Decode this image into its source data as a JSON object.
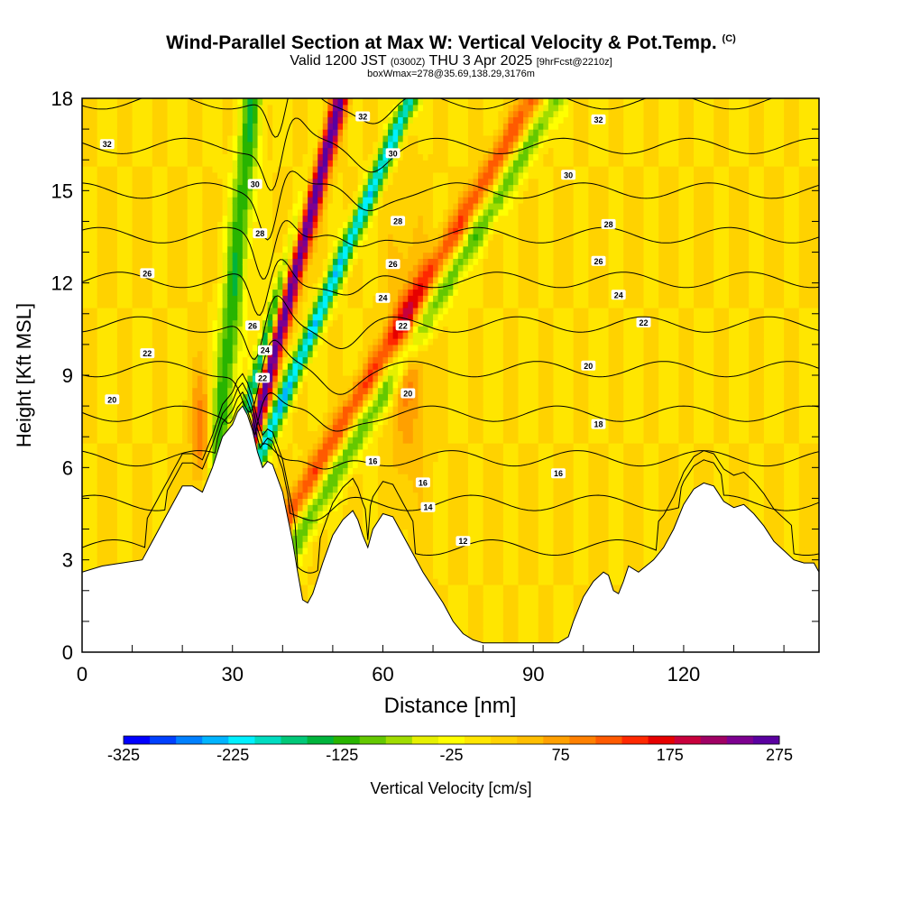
{
  "header": {
    "title": "Wind-Parallel Section at Max W: Vertical Velocity & Pot.Temp.",
    "copyright": "(C)",
    "valid_prefix": "Valid 1200 JST",
    "utc_time": "(0300Z)",
    "valid_date": "THU 3 Apr 2025",
    "forecast_tag": "[9hrFcst@2210z]",
    "box_info": "boxWmax=278@35.69,138.29,3176m"
  },
  "chart_data": {
    "type": "heatmap",
    "xlabel": "Distance [nm]",
    "ylabel": "Height [Kft MSL]",
    "xlim": [
      0,
      147
    ],
    "ylim": [
      0,
      18
    ],
    "x_ticks": [
      0,
      30,
      60,
      90,
      120
    ],
    "y_ticks": [
      0,
      3,
      6,
      9,
      12,
      15,
      18
    ],
    "grid": false,
    "background_w": 25,
    "terrain": [
      [
        0,
        2.6
      ],
      [
        4,
        2.8
      ],
      [
        8,
        2.9
      ],
      [
        12,
        3.0
      ],
      [
        14,
        3.6
      ],
      [
        16,
        4.2
      ],
      [
        18,
        4.8
      ],
      [
        20,
        5.4
      ],
      [
        22,
        5.4
      ],
      [
        24,
        5.2
      ],
      [
        26,
        6.0
      ],
      [
        28,
        7.0
      ],
      [
        30,
        7.4
      ],
      [
        31,
        7.8
      ],
      [
        32,
        8.0
      ],
      [
        33,
        7.7
      ],
      [
        34,
        7.2
      ],
      [
        35,
        6.5
      ],
      [
        36,
        6.0
      ],
      [
        37,
        6.2
      ],
      [
        38,
        6.1
      ],
      [
        40,
        5.2
      ],
      [
        42,
        3.6
      ],
      [
        43,
        2.6
      ],
      [
        44,
        1.7
      ],
      [
        45,
        1.6
      ],
      [
        46,
        1.9
      ],
      [
        48,
        2.9
      ],
      [
        50,
        3.8
      ],
      [
        52,
        4.3
      ],
      [
        54,
        4.6
      ],
      [
        55,
        4.3
      ],
      [
        56,
        3.8
      ],
      [
        57,
        3.4
      ],
      [
        58,
        4.0
      ],
      [
        60,
        4.5
      ],
      [
        62,
        4.4
      ],
      [
        64,
        3.8
      ],
      [
        66,
        3.2
      ],
      [
        68,
        2.6
      ],
      [
        70,
        2.1
      ],
      [
        72,
        1.6
      ],
      [
        74,
        1.0
      ],
      [
        76,
        0.6
      ],
      [
        78,
        0.4
      ],
      [
        80,
        0.3
      ],
      [
        84,
        0.3
      ],
      [
        90,
        0.3
      ],
      [
        95,
        0.3
      ],
      [
        97,
        0.5
      ],
      [
        98,
        1.0
      ],
      [
        100,
        1.8
      ],
      [
        102,
        2.3
      ],
      [
        104,
        2.6
      ],
      [
        105,
        2.5
      ],
      [
        106,
        2.0
      ],
      [
        107,
        1.9
      ],
      [
        108,
        2.3
      ],
      [
        109,
        2.8
      ],
      [
        111,
        2.6
      ],
      [
        114,
        3.0
      ],
      [
        116,
        3.4
      ],
      [
        118,
        4.0
      ],
      [
        120,
        4.8
      ],
      [
        122,
        5.3
      ],
      [
        124,
        5.5
      ],
      [
        126,
        5.4
      ],
      [
        128,
        4.9
      ],
      [
        130,
        4.7
      ],
      [
        132,
        4.8
      ],
      [
        134,
        4.5
      ],
      [
        136,
        4.1
      ],
      [
        138,
        3.6
      ],
      [
        140,
        3.3
      ],
      [
        142,
        3.0
      ],
      [
        144,
        2.9
      ],
      [
        146,
        2.9
      ],
      [
        147,
        2.6
      ]
    ],
    "w_features": [
      {
        "x": 35.5,
        "y": 8.0,
        "slope": 0.16,
        "amp": 275,
        "sx": 1.2,
        "sy": 30
      },
      {
        "x": 33.3,
        "y": 8.0,
        "slope": 0.16,
        "amp": -250,
        "sx": 0.9,
        "sy": 4
      },
      {
        "x": 39.5,
        "y": 8.0,
        "slope": 0.26,
        "amp": -250,
        "sx": 1.2,
        "sy": 30
      },
      {
        "x": 28.0,
        "y": 8.0,
        "slope": 0.06,
        "amp": -150,
        "sx": 1.6,
        "sy": 30
      },
      {
        "x": 54.0,
        "y": 8.0,
        "slope": 0.36,
        "amp": 125,
        "sx": 1.8,
        "sy": 30
      },
      {
        "x": 58.5,
        "y": 8.0,
        "slope": 0.36,
        "amp": -120,
        "sx": 1.8,
        "sy": 30
      },
      {
        "x": 65.0,
        "y": 9.5,
        "slope": 0.0,
        "amp": 75,
        "sx": 2.5,
        "sy": 3
      },
      {
        "x": 24.0,
        "y": 7.0,
        "slope": 0.0,
        "amp": 100,
        "sx": 1.5,
        "sy": 1.5
      }
    ],
    "theta_levels": [
      12,
      14,
      16,
      18,
      20,
      22,
      24,
      26,
      28,
      30,
      32
    ],
    "theta_labels": [
      {
        "text": "32",
        "x": 5,
        "y": 16.5
      },
      {
        "text": "26",
        "x": 13,
        "y": 12.3
      },
      {
        "text": "22",
        "x": 13,
        "y": 9.7
      },
      {
        "text": "20",
        "x": 6,
        "y": 8.2
      },
      {
        "text": "32",
        "x": 56,
        "y": 17.4
      },
      {
        "text": "30",
        "x": 62,
        "y": 16.2
      },
      {
        "text": "28",
        "x": 63,
        "y": 14.0
      },
      {
        "text": "26",
        "x": 62,
        "y": 12.6
      },
      {
        "text": "24",
        "x": 60,
        "y": 11.5
      },
      {
        "text": "22",
        "x": 64,
        "y": 10.6
      },
      {
        "text": "20",
        "x": 65,
        "y": 8.4
      },
      {
        "text": "16",
        "x": 58,
        "y": 6.2
      },
      {
        "text": "16",
        "x": 68,
        "y": 5.5
      },
      {
        "text": "14",
        "x": 69,
        "y": 4.7
      },
      {
        "text": "12",
        "x": 76,
        "y": 3.6
      },
      {
        "text": "32",
        "x": 103,
        "y": 17.3
      },
      {
        "text": "30",
        "x": 97,
        "y": 15.5
      },
      {
        "text": "28",
        "x": 105,
        "y": 13.9
      },
      {
        "text": "26",
        "x": 103,
        "y": 12.7
      },
      {
        "text": "24",
        "x": 107,
        "y": 11.6
      },
      {
        "text": "22",
        "x": 112,
        "y": 10.7
      },
      {
        "text": "20",
        "x": 101,
        "y": 9.3
      },
      {
        "text": "18",
        "x": 103,
        "y": 7.4
      },
      {
        "text": "16",
        "x": 95,
        "y": 5.8
      },
      {
        "text": "30",
        "x": 34.5,
        "y": 15.2
      },
      {
        "text": "28",
        "x": 35.5,
        "y": 13.6
      },
      {
        "text": "26",
        "x": 34,
        "y": 10.6
      },
      {
        "text": "24",
        "x": 36.5,
        "y": 9.8
      },
      {
        "text": "22",
        "x": 36,
        "y": 8.9
      }
    ],
    "colorbar": {
      "label": "Vertical Velocity [cm/s]",
      "min": -325,
      "max": 275,
      "step": 25,
      "tick_labels": [
        "-325",
        "-225",
        "-125",
        "-25",
        "75",
        "175",
        "275"
      ],
      "colors": [
        "#0000ff",
        "#0040ff",
        "#0080ff",
        "#00b4ff",
        "#00f0ff",
        "#00dcc0",
        "#00c878",
        "#00b43c",
        "#28b400",
        "#64c800",
        "#a0dc00",
        "#e6f000",
        "#ffff00",
        "#ffe600",
        "#ffd200",
        "#ffbe00",
        "#ffa000",
        "#ff8000",
        "#ff5a00",
        "#ff2800",
        "#e60000",
        "#c8003c",
        "#a00064",
        "#7d0090",
        "#5a00a0"
      ]
    }
  }
}
